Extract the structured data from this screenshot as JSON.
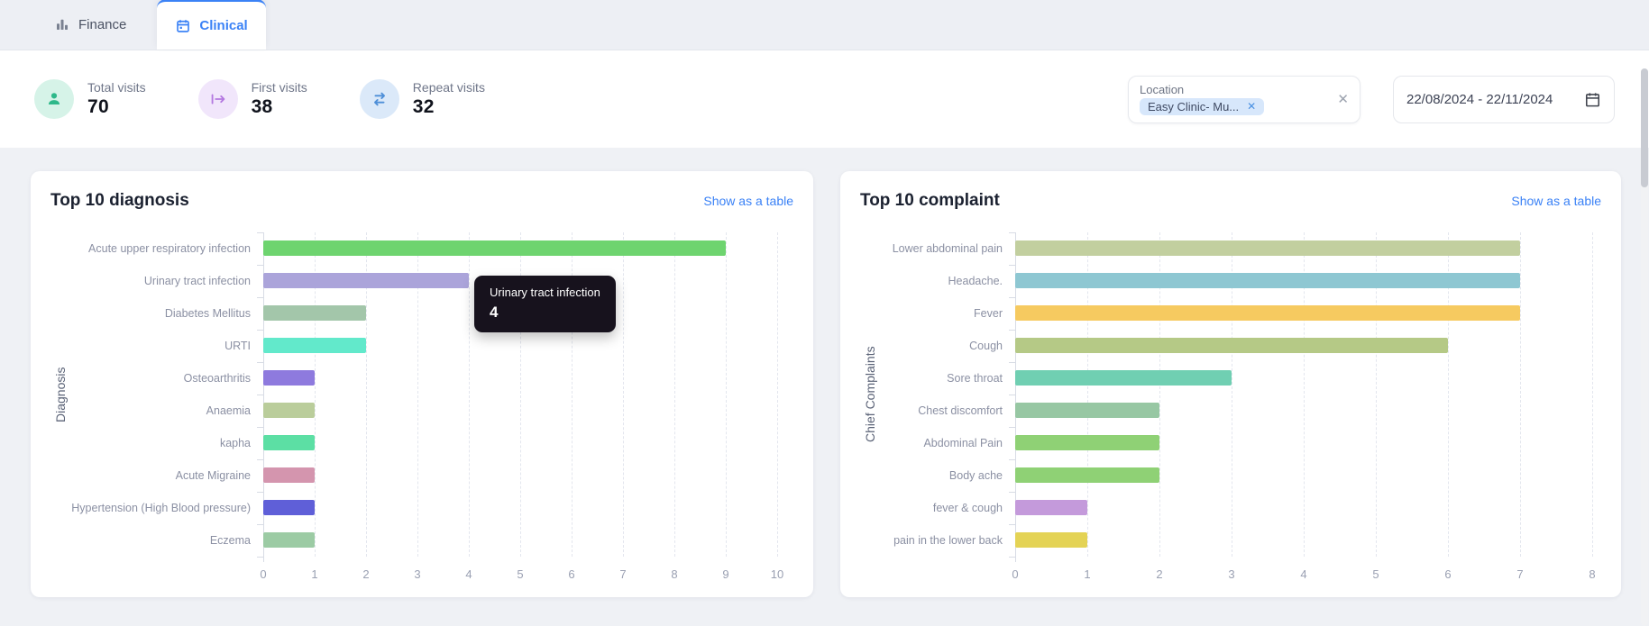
{
  "tabs": [
    {
      "label": "Finance",
      "icon": "bar-chart-icon",
      "active": false
    },
    {
      "label": "Clinical",
      "icon": "calendar-icon",
      "active": true
    }
  ],
  "stats": [
    {
      "label": "Total visits",
      "value": "70",
      "icon": "person-icon",
      "icon_color": "#2eb88a",
      "circle_color": "#d6f3e8"
    },
    {
      "label": "First visits",
      "value": "38",
      "icon": "arrow-bar-right-icon",
      "icon_color": "#b478e0",
      "circle_color": "#f1e6fb"
    },
    {
      "label": "Repeat visits",
      "value": "32",
      "icon": "repeat-arrows-icon",
      "icon_color": "#4e8fd8",
      "circle_color": "#dbe9f9"
    }
  ],
  "filters": {
    "location_label": "Location",
    "location_chip": "Easy Clinic- Mu...",
    "chip_close": "✕",
    "clear": "✕",
    "date_range": "22/08/2024 - 22/11/2024"
  },
  "cards": [
    {
      "title": "Top 10 diagnosis",
      "link": "Show as a table"
    },
    {
      "title": "Top 10 complaint",
      "link": "Show as a table"
    }
  ],
  "tooltip": {
    "title": "Urinary tract infection",
    "value": "4"
  },
  "accent_color": "#3b82f6",
  "chart_data": [
    {
      "type": "bar",
      "orientation": "horizontal",
      "title": "Top 10 diagnosis",
      "ylabel": "Diagnosis",
      "xlabel": "",
      "categories": [
        "Acute upper respiratory infection",
        "Urinary tract infection",
        "Diabetes Mellitus",
        "URTI",
        "Osteoarthritis",
        "Anaemia",
        "kapha",
        "Acute Migraine",
        "Hypertension (High Blood pressure)",
        "Eczema"
      ],
      "values": [
        9,
        4,
        2,
        2,
        1,
        1,
        1,
        1,
        1,
        1
      ],
      "bar_colors": [
        "#6ed46f",
        "#aba4da",
        "#a3c6aa",
        "#62e9cb",
        "#8e7ade",
        "#bacd9b",
        "#5cdfa4",
        "#d495ae",
        "#5f5fd8",
        "#9ccba4"
      ],
      "xlim": [
        0,
        10
      ],
      "xticks": [
        0,
        1,
        2,
        3,
        4,
        5,
        6,
        7,
        8,
        9,
        10
      ],
      "grid": "dashed-vertical",
      "legend": false
    },
    {
      "type": "bar",
      "orientation": "horizontal",
      "title": "Top 10 complaint",
      "ylabel": "Chief Complaints",
      "xlabel": "",
      "categories": [
        "Lower abdominal pain",
        "Headache.",
        "Fever",
        "Cough",
        "Sore throat",
        "Chest discomfort",
        "Abdominal Pain",
        "Body ache",
        "fever & cough",
        "pain in the lower back"
      ],
      "values": [
        7,
        7,
        7,
        6,
        3,
        2,
        2,
        2,
        1,
        1
      ],
      "bar_colors": [
        "#c2cf9f",
        "#8ec7d2",
        "#f6ca60",
        "#b5c986",
        "#70cfb2",
        "#97c7a3",
        "#8fd175",
        "#8fd175",
        "#c49adb",
        "#e4d355"
      ],
      "xlim": [
        0,
        8
      ],
      "xticks": [
        0,
        1,
        2,
        3,
        4,
        5,
        6,
        7,
        8
      ],
      "grid": "dashed-vertical",
      "legend": false
    }
  ]
}
